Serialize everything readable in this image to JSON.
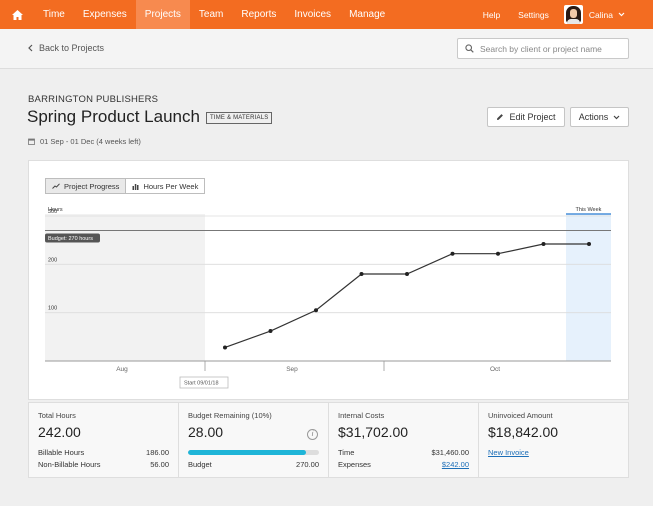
{
  "nav": {
    "items": [
      "Time",
      "Expenses",
      "Projects",
      "Team",
      "Reports",
      "Invoices",
      "Manage"
    ],
    "active": "Projects",
    "help": "Help",
    "settings": "Settings",
    "user": "Calina",
    "accent": "#f36c21"
  },
  "subbar": {
    "back_label": "Back to Projects",
    "search_placeholder": "Search by client or project name"
  },
  "project": {
    "client": "BARRINGTON PUBLISHERS",
    "title": "Spring Product Launch",
    "billing_tag": "TIME & MATERIALS",
    "dates": "01 Sep - 01 Dec (4 weeks left)",
    "edit_label": "Edit Project",
    "actions_label": "Actions"
  },
  "chart_tabs": [
    "Project Progress",
    "Hours Per Week"
  ],
  "chart_data": {
    "type": "line",
    "ylabel": "Hours",
    "ylim": [
      0,
      300
    ],
    "yticks": [
      100,
      200,
      300
    ],
    "x_labels": [
      "Aug",
      "Sep",
      "Oct"
    ],
    "budget_label": "Budget: 270 hours",
    "budget": 270,
    "start_label": "Start 09/01/18",
    "this_week_label": "This Week",
    "series": [
      {
        "values": [
          28,
          62,
          105,
          180,
          180,
          222,
          222,
          242,
          242
        ]
      }
    ]
  },
  "stats": {
    "total_hours": {
      "label": "Total Hours",
      "value": "242.00",
      "billable_label": "Billable Hours",
      "billable": "186.00",
      "nonbillable_label": "Non-Billable Hours",
      "nonbillable": "56.00"
    },
    "budget_remaining": {
      "label": "Budget Remaining (10%)",
      "value": "28.00",
      "budget_label": "Budget",
      "budget": "270.00",
      "progress": 0.9
    },
    "internal_costs": {
      "label": "Internal Costs",
      "value": "$31,702.00",
      "time_label": "Time",
      "time": "$31,460.00",
      "expenses_label": "Expenses",
      "expenses": "$242.00"
    },
    "uninvoiced": {
      "label": "Uninvoiced Amount",
      "value": "$18,842.00",
      "new_invoice": "New Invoice"
    }
  }
}
